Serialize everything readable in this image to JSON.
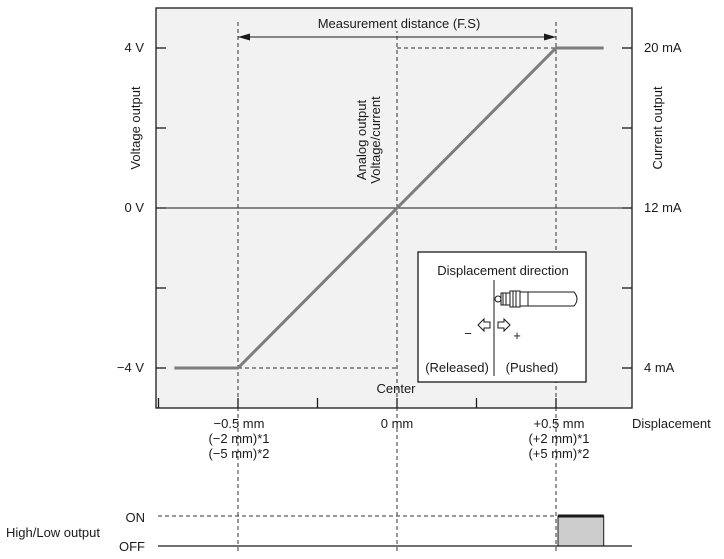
{
  "colors": {
    "plot_bg": "#f2f2f2",
    "line": "#7d7d7d",
    "axis": "#1a1a1a",
    "dashed": "#333333",
    "onoff_fill": "#cccccc"
  },
  "chart_data": {
    "type": "line",
    "x_axis": {
      "label": "Displacement",
      "range": [
        -0.75,
        0.65
      ],
      "ticks": [
        {
          "value": -0.5,
          "lines": [
            "−0.5 mm",
            "(−2 mm)*1",
            "(−5 mm)*2"
          ]
        },
        {
          "value": 0,
          "lines": [
            "0 mm"
          ]
        },
        {
          "value": 0.5,
          "lines": [
            "+0.5 mm",
            "(+2 mm)*1",
            "(+5 mm)*2"
          ]
        }
      ],
      "minor_ticks": [
        -0.75,
        -0.5,
        -0.25,
        0,
        0.25,
        0.5
      ]
    },
    "y_axis_left": {
      "label": "Voltage output",
      "range": [
        -5,
        5
      ],
      "ticks": [
        {
          "value": 4,
          "label": "4 V"
        },
        {
          "value": 2,
          "label": ""
        },
        {
          "value": 0,
          "label": "0 V"
        },
        {
          "value": -2,
          "label": ""
        },
        {
          "value": -4,
          "label": "−4 V"
        }
      ]
    },
    "y_axis_right": {
      "label": "Current output",
      "ticks": [
        {
          "value": 4,
          "label": "20 mA"
        },
        {
          "value": 2,
          "label": ""
        },
        {
          "value": 0,
          "label": "12 mA"
        },
        {
          "value": -2,
          "label": ""
        },
        {
          "value": -4,
          "label": "4 mA"
        }
      ]
    },
    "series": [
      {
        "x": [
          -0.7,
          -0.5,
          0.5,
          0.65
        ],
        "y": [
          -4,
          -4,
          4,
          4
        ]
      }
    ],
    "annotations": {
      "fs_label": "Measurement distance (F.S)",
      "center_label": "Center",
      "vertical_label_line1": "Analog output",
      "vertical_label_line2": "Voltage/current"
    },
    "inset": {
      "title": "Displacement direction",
      "minus": "−",
      "plus": "+",
      "released": "(Released)",
      "pushed": "(Pushed)"
    },
    "output_chart": {
      "label": "High/Low output",
      "on_label": "ON",
      "off_label": "OFF",
      "on_range": [
        0.5,
        0.65
      ]
    }
  }
}
